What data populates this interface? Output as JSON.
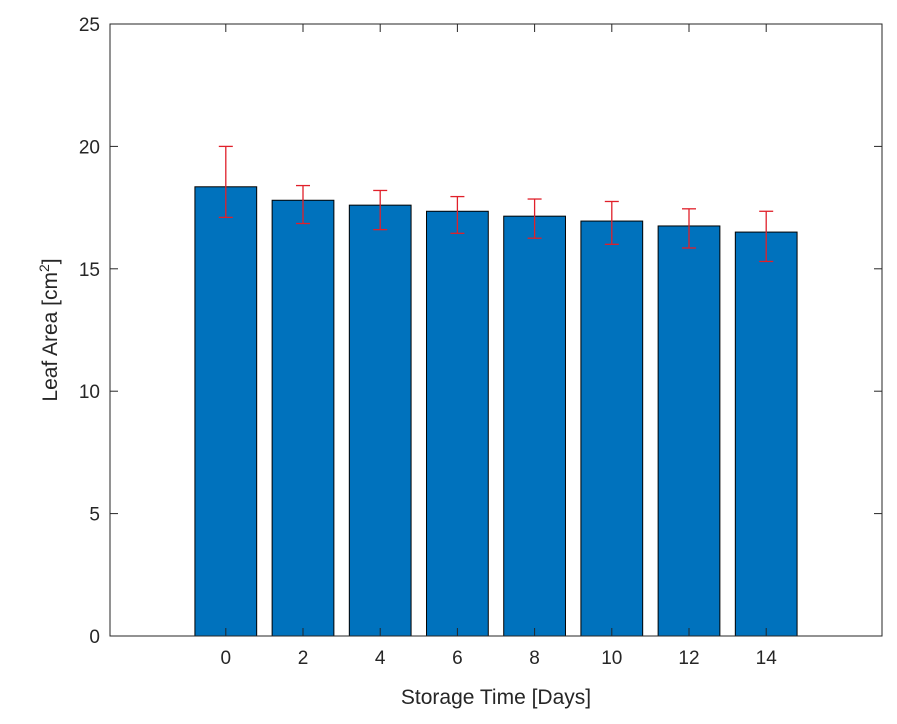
{
  "chart_data": {
    "type": "bar",
    "categories": [
      "0",
      "2",
      "4",
      "6",
      "8",
      "10",
      "12",
      "14"
    ],
    "values": [
      18.35,
      17.8,
      17.6,
      17.35,
      17.15,
      16.95,
      16.75,
      16.5
    ],
    "error_low": [
      17.1,
      16.85,
      16.6,
      16.45,
      16.25,
      16.0,
      15.85,
      15.3
    ],
    "error_high": [
      20.0,
      18.4,
      18.2,
      17.95,
      17.85,
      17.75,
      17.45,
      17.35
    ],
    "xlabel": "Storage Time [Days]",
    "ylabel": "Leaf Area [cm",
    "ylabel_superscript": "2",
    "ylabel_suffix": "]",
    "ylim": [
      0,
      25
    ],
    "yticks": [
      0,
      5,
      10,
      15,
      20,
      25
    ],
    "grid": false,
    "bar_color": "#0072BD",
    "bar_edge_color": "#000000",
    "error_color": "#E0202A"
  }
}
